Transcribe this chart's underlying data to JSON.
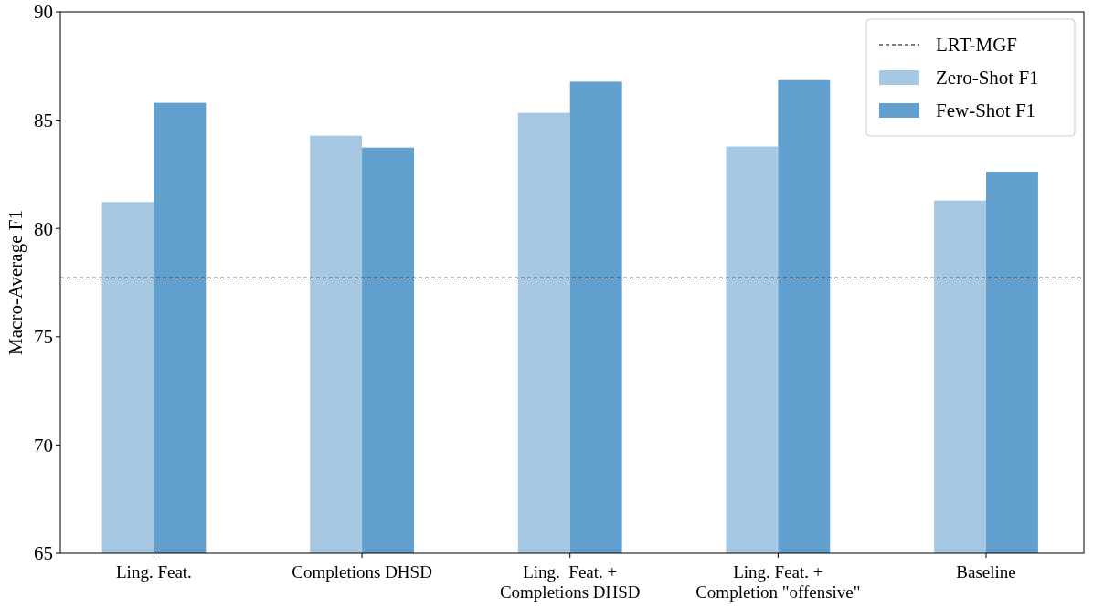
{
  "chart_data": {
    "type": "bar",
    "ylabel": "Macro-Average F1",
    "categories": [
      "Ling. Feat.",
      "Completions DHSD",
      "Ling.  Feat. +\nCompletions DHSD",
      "Ling. Feat. +\nCompletion \"offensive\"",
      "Baseline"
    ],
    "series": [
      {
        "name": "Zero-Shot F1",
        "color": "#a6c8e3",
        "values": [
          81.22,
          84.28,
          85.34,
          83.78,
          81.29
        ]
      },
      {
        "name": "Few-Shot F1",
        "color": "#62a0cf",
        "values": [
          85.8,
          83.73,
          86.78,
          86.85,
          82.62
        ]
      }
    ],
    "ylim": [
      65,
      90
    ],
    "yticks": [
      65,
      70,
      75,
      80,
      85,
      90
    ],
    "ref_lines": [
      {
        "axis": "y",
        "value": 77.72,
        "label": "LRT-MGF",
        "color": "#000000",
        "line_style": "dashed"
      }
    ],
    "legend": "top right",
    "grid": false
  }
}
